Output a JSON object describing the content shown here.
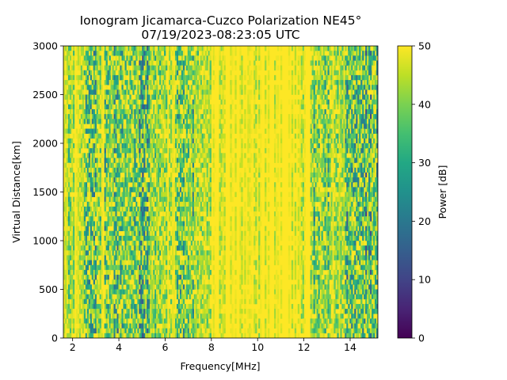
{
  "chart_data": {
    "type": "heatmap",
    "title": [
      "Ionogram Jicamarca-Cuzco Polarization NE45°",
      "07/19/2023-08:23:05 UTC"
    ],
    "xlabel": "Frequency[MHz]",
    "ylabel": "Virtual Distance[km]",
    "colorbar_label": "Power [dB]",
    "xlim": [
      1.6,
      15.2
    ],
    "ylim": [
      0,
      3000
    ],
    "clim": [
      0,
      50
    ],
    "colormap": "viridis",
    "x_ticks": [
      2,
      4,
      6,
      8,
      10,
      12,
      14
    ],
    "y_ticks": [
      0,
      500,
      1000,
      1500,
      2000,
      2500,
      3000
    ],
    "colorbar_ticks": [
      0,
      10,
      20,
      30,
      40,
      50
    ],
    "bands": [
      {
        "from": 1.6,
        "to": 1.9,
        "mean_db": 44
      },
      {
        "from": 1.9,
        "to": 2.3,
        "mean_db": 47
      },
      {
        "from": 2.3,
        "to": 2.6,
        "mean_db": 42
      },
      {
        "from": 2.6,
        "to": 3.2,
        "mean_db": 40
      },
      {
        "from": 3.2,
        "to": 3.4,
        "mean_db": 49
      },
      {
        "from": 3.4,
        "to": 3.8,
        "mean_db": 41
      },
      {
        "from": 3.8,
        "to": 4.3,
        "mean_db": 39
      },
      {
        "from": 4.3,
        "to": 4.8,
        "mean_db": 41
      },
      {
        "from": 4.8,
        "to": 5.3,
        "mean_db": 38
      },
      {
        "from": 5.3,
        "to": 6.0,
        "mean_db": 42
      },
      {
        "from": 6.0,
        "to": 6.5,
        "mean_db": 46
      },
      {
        "from": 6.5,
        "to": 7.3,
        "mean_db": 41
      },
      {
        "from": 7.3,
        "to": 7.8,
        "mean_db": 46
      },
      {
        "from": 7.8,
        "to": 8.0,
        "mean_db": 43
      },
      {
        "from": 8.0,
        "to": 9.8,
        "mean_db": 49.6
      },
      {
        "from": 9.8,
        "to": 10.2,
        "mean_db": 49
      },
      {
        "from": 10.2,
        "to": 11.5,
        "mean_db": 50
      },
      {
        "from": 11.5,
        "to": 12.3,
        "mean_db": 48.5
      },
      {
        "from": 12.3,
        "to": 13.2,
        "mean_db": 42
      },
      {
        "from": 13.2,
        "to": 13.8,
        "mean_db": 46
      },
      {
        "from": 13.8,
        "to": 15.2,
        "mean_db": 38
      }
    ]
  }
}
